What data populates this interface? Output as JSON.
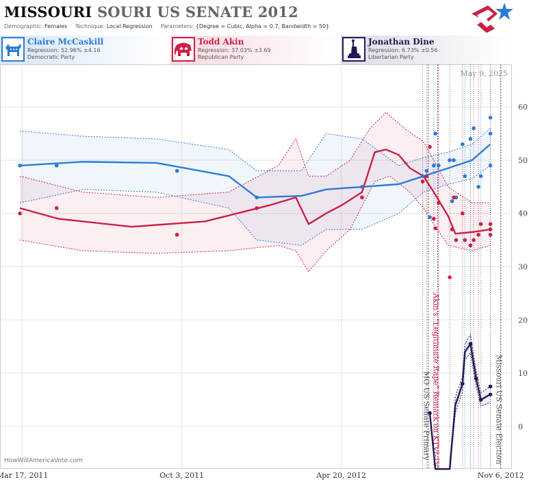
{
  "header": {
    "title_bold": "MISSOURI",
    "title_rest": "SOURI US SENATE 2012",
    "demographic_label": "Demographic:",
    "demographic": "Females",
    "technique_label": "Technique:",
    "technique": "Local Regression",
    "parameters_label": "Parameters:",
    "parameters": "{Degree = Cubic, Alpha = 0.7, Bandwidth = 50}"
  },
  "candidates": [
    {
      "name": "Claire McCaskill",
      "regression": "Regression: 52.96% ±4.16",
      "party": "Democratic Party",
      "color": "#2a7bd6",
      "icon": "donkey-icon"
    },
    {
      "name": "Todd Akin",
      "regression": "Regression: 37.03% ±3.69",
      "party": "Republican Party",
      "color": "#cc1f45",
      "icon": "elephant-icon"
    },
    {
      "name": "Jonathan Dine",
      "regression": "Regression: 6.73% ±0.56",
      "party": "Libertarian Party",
      "color": "#1f1a55",
      "icon": "liberty-icon"
    }
  ],
  "watermark": "HowWillAmericaVote.com",
  "chart_data": {
    "type": "line",
    "date_stamp": "May 9, 2025",
    "x_ticks": [
      "Mar 17, 2011",
      "Oct 3, 2011",
      "Apr 20, 2012",
      "Nov 6, 2012"
    ],
    "x_range": [
      "2011-02-17",
      "2012-11-20"
    ],
    "y_ticks": [
      "60",
      "50",
      "40",
      "30",
      "20",
      "10",
      "0"
    ],
    "ylim": [
      -8,
      68
    ],
    "grid": true,
    "events": [
      {
        "date": "2012-08-07",
        "label": "MO US Senate Primary"
      },
      {
        "date": "2012-08-19",
        "label": "Akin's \"Legitimate Rape\" Remark on KTVI-TV"
      },
      {
        "date": "2012-11-06",
        "label": "Missouri US Senate Election"
      }
    ],
    "series": [
      {
        "name": "Claire McCaskill",
        "color": "#2a7bd6",
        "points": [
          [
            "2011-03-14",
            49
          ],
          [
            "2011-04-29",
            49
          ],
          [
            "2011-09-27",
            48
          ],
          [
            "2012-01-05",
            43
          ],
          [
            "2012-05-16",
            45
          ],
          [
            "2012-07-31",
            47
          ],
          [
            "2012-08-05",
            48
          ],
          [
            "2012-08-09",
            39.3
          ],
          [
            "2012-08-14",
            49
          ],
          [
            "2012-08-16",
            55
          ],
          [
            "2012-08-20",
            49
          ],
          [
            "2012-09-03",
            50
          ],
          [
            "2012-09-06",
            42.3
          ],
          [
            "2012-09-08",
            50
          ],
          [
            "2012-09-11",
            43
          ],
          [
            "2012-09-19",
            53
          ],
          [
            "2012-09-22",
            47
          ],
          [
            "2012-09-29",
            54
          ],
          [
            "2012-10-03",
            56
          ],
          [
            "2012-10-09",
            45
          ],
          [
            "2012-10-12",
            47
          ],
          [
            "2012-10-24",
            49
          ],
          [
            "2012-10-24",
            55
          ],
          [
            "2012-10-24",
            58
          ]
        ],
        "trend": [
          [
            "2011-03-14",
            49
          ],
          [
            "2011-06-01",
            49.7
          ],
          [
            "2011-09-01",
            49.5
          ],
          [
            "2011-12-01",
            47
          ],
          [
            "2012-01-05",
            43
          ],
          [
            "2012-03-01",
            43.3
          ],
          [
            "2012-04-01",
            44.5
          ],
          [
            "2012-05-16",
            45
          ],
          [
            "2012-07-01",
            45.5
          ],
          [
            "2012-08-01",
            47
          ],
          [
            "2012-09-01",
            48.5
          ],
          [
            "2012-10-01",
            50
          ],
          [
            "2012-10-24",
            53
          ]
        ],
        "band_upper": [
          [
            "2011-03-14",
            55.5
          ],
          [
            "2011-06-01",
            54.5
          ],
          [
            "2011-09-01",
            54
          ],
          [
            "2011-12-01",
            52
          ],
          [
            "2012-01-05",
            48
          ],
          [
            "2012-03-01",
            48
          ],
          [
            "2012-04-01",
            55
          ],
          [
            "2012-05-16",
            54
          ],
          [
            "2012-07-01",
            49
          ],
          [
            "2012-08-01",
            50.5
          ],
          [
            "2012-09-01",
            51.5
          ],
          [
            "2012-10-01",
            53
          ],
          [
            "2012-10-24",
            56
          ]
        ],
        "band_lower": [
          [
            "2011-03-14",
            42
          ],
          [
            "2011-06-01",
            44.5
          ],
          [
            "2011-09-01",
            44
          ],
          [
            "2011-12-01",
            41
          ],
          [
            "2012-01-05",
            35
          ],
          [
            "2012-03-01",
            34
          ],
          [
            "2012-04-01",
            37
          ],
          [
            "2012-05-16",
            37
          ],
          [
            "2012-07-01",
            40
          ],
          [
            "2012-08-01",
            44
          ],
          [
            "2012-09-01",
            45.5
          ],
          [
            "2012-10-01",
            46.5
          ],
          [
            "2012-10-24",
            49
          ]
        ]
      },
      {
        "name": "Todd Akin",
        "color": "#cc1f45",
        "points": [
          [
            "2011-03-14",
            40
          ],
          [
            "2011-04-29",
            41
          ],
          [
            "2011-09-27",
            36
          ],
          [
            "2012-01-05",
            41
          ],
          [
            "2012-05-16",
            43
          ],
          [
            "2012-07-31",
            46
          ],
          [
            "2012-08-05",
            47
          ],
          [
            "2012-08-09",
            52.5
          ],
          [
            "2012-08-14",
            39
          ],
          [
            "2012-08-16",
            37.2
          ],
          [
            "2012-08-20",
            42
          ],
          [
            "2012-09-03",
            28
          ],
          [
            "2012-09-06",
            37
          ],
          [
            "2012-09-08",
            43
          ],
          [
            "2012-09-11",
            35
          ],
          [
            "2012-09-19",
            40
          ],
          [
            "2012-09-22",
            35
          ],
          [
            "2012-09-29",
            34
          ],
          [
            "2012-10-03",
            35
          ],
          [
            "2012-10-09",
            36
          ],
          [
            "2012-10-12",
            38
          ],
          [
            "2012-10-24",
            36
          ],
          [
            "2012-10-24",
            37
          ],
          [
            "2012-10-24",
            38
          ]
        ],
        "trend": [
          [
            "2011-03-14",
            41
          ],
          [
            "2011-05-01",
            39
          ],
          [
            "2011-08-01",
            37.5
          ],
          [
            "2011-11-01",
            38.5
          ],
          [
            "2012-01-20",
            41.5
          ],
          [
            "2012-02-23",
            43
          ],
          [
            "2012-03-10",
            38
          ],
          [
            "2012-04-01",
            40
          ],
          [
            "2012-04-20",
            41.5
          ],
          [
            "2012-05-16",
            44
          ],
          [
            "2012-06-01",
            51.5
          ],
          [
            "2012-06-15",
            52
          ],
          [
            "2012-07-01",
            51
          ],
          [
            "2012-07-15",
            48.5
          ],
          [
            "2012-08-01",
            47
          ],
          [
            "2012-08-14",
            44
          ],
          [
            "2012-09-01",
            39.5
          ],
          [
            "2012-09-10",
            36.2
          ],
          [
            "2012-10-01",
            36.5
          ],
          [
            "2012-10-24",
            37
          ]
        ],
        "band_upper": [
          [
            "2011-03-14",
            47
          ],
          [
            "2011-06-01",
            44
          ],
          [
            "2011-09-01",
            43
          ],
          [
            "2011-12-01",
            44
          ],
          [
            "2012-02-01",
            49
          ],
          [
            "2012-02-23",
            54
          ],
          [
            "2012-03-10",
            47
          ],
          [
            "2012-04-01",
            47
          ],
          [
            "2012-05-01",
            50
          ],
          [
            "2012-05-26",
            56
          ],
          [
            "2012-06-15",
            59
          ],
          [
            "2012-07-08",
            56
          ],
          [
            "2012-08-01",
            53.5
          ],
          [
            "2012-08-16",
            49.5
          ],
          [
            "2012-09-01",
            45
          ],
          [
            "2012-10-01",
            42
          ],
          [
            "2012-10-24",
            42
          ]
        ],
        "band_lower": [
          [
            "2011-03-14",
            35
          ],
          [
            "2011-06-01",
            33
          ],
          [
            "2011-09-01",
            32.5
          ],
          [
            "2011-12-01",
            33
          ],
          [
            "2012-02-01",
            34
          ],
          [
            "2012-02-23",
            33
          ],
          [
            "2012-03-10",
            29
          ],
          [
            "2012-04-01",
            33
          ],
          [
            "2012-05-01",
            37
          ],
          [
            "2012-06-01",
            46
          ],
          [
            "2012-06-20",
            47
          ],
          [
            "2012-07-15",
            44
          ],
          [
            "2012-08-01",
            41
          ],
          [
            "2012-08-16",
            37.5
          ],
          [
            "2012-09-01",
            34
          ],
          [
            "2012-10-01",
            33
          ],
          [
            "2012-10-24",
            34
          ]
        ]
      },
      {
        "name": "Jonathan Dine",
        "color": "#1f1a55",
        "points": [
          [
            "2012-08-09",
            2.5
          ],
          [
            "2012-08-16",
            -9
          ],
          [
            "2012-09-03",
            -9
          ],
          [
            "2012-09-19",
            8
          ],
          [
            "2012-09-29",
            15.5
          ],
          [
            "2012-10-06",
            9
          ],
          [
            "2012-10-12",
            5
          ],
          [
            "2012-10-24",
            6
          ],
          [
            "2012-10-24",
            7.5
          ]
        ],
        "trend": [
          [
            "2012-08-09",
            2.5
          ],
          [
            "2012-08-16",
            -8.5
          ],
          [
            "2012-09-03",
            -8.5
          ],
          [
            "2012-09-10",
            4
          ],
          [
            "2012-09-19",
            8
          ],
          [
            "2012-09-22",
            14
          ],
          [
            "2012-09-29",
            15.5
          ],
          [
            "2012-10-06",
            9
          ],
          [
            "2012-10-12",
            5
          ],
          [
            "2012-10-24",
            6
          ]
        ],
        "band_upper": [
          [
            "2012-09-03",
            -7
          ],
          [
            "2012-09-10",
            5.5
          ],
          [
            "2012-09-19",
            9.5
          ],
          [
            "2012-09-22",
            15.5
          ],
          [
            "2012-09-29",
            17.3
          ],
          [
            "2012-10-06",
            10.5
          ],
          [
            "2012-10-12",
            6.3
          ],
          [
            "2012-10-24",
            7.5
          ]
        ],
        "band_lower": [
          [
            "2012-09-03",
            -9.5
          ],
          [
            "2012-09-10",
            2.5
          ],
          [
            "2012-09-19",
            6.5
          ],
          [
            "2012-09-22",
            12.5
          ],
          [
            "2012-09-29",
            13.8
          ],
          [
            "2012-10-06",
            7.5
          ],
          [
            "2012-10-12",
            3.8
          ],
          [
            "2012-10-24",
            4.5
          ]
        ]
      }
    ],
    "poll_dates": [
      "2012-07-31",
      "2012-08-05",
      "2012-08-14",
      "2012-08-20",
      "2012-09-03",
      "2012-09-19",
      "2012-09-22",
      "2012-09-29",
      "2012-10-03",
      "2012-10-09",
      "2012-10-12",
      "2012-10-24"
    ]
  }
}
